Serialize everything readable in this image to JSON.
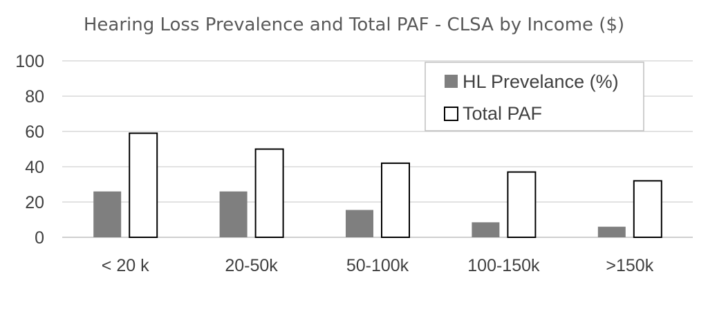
{
  "chart_data": {
    "type": "bar",
    "title": "Hearing Loss Prevalence and Total PAF - CLSA by Income ($)",
    "xlabel": "",
    "ylabel": "",
    "categories": [
      "< 20 k",
      "20-50k",
      "50-100k",
      "100-150k",
      ">150k"
    ],
    "ylim": [
      0,
      100
    ],
    "yticks": [
      "0",
      "20",
      "40",
      "60",
      "80",
      "100"
    ],
    "grid": true,
    "legend_position": "top-right",
    "series": [
      {
        "name": "HL Prevelance (%)",
        "values": [
          26,
          26,
          15.5,
          8.5,
          6
        ],
        "color": "#7f7f7f"
      },
      {
        "name": "Total PAF",
        "values": [
          59,
          50,
          42,
          37,
          32
        ],
        "color": "#ffffff",
        "stroke": "#000000"
      }
    ]
  }
}
